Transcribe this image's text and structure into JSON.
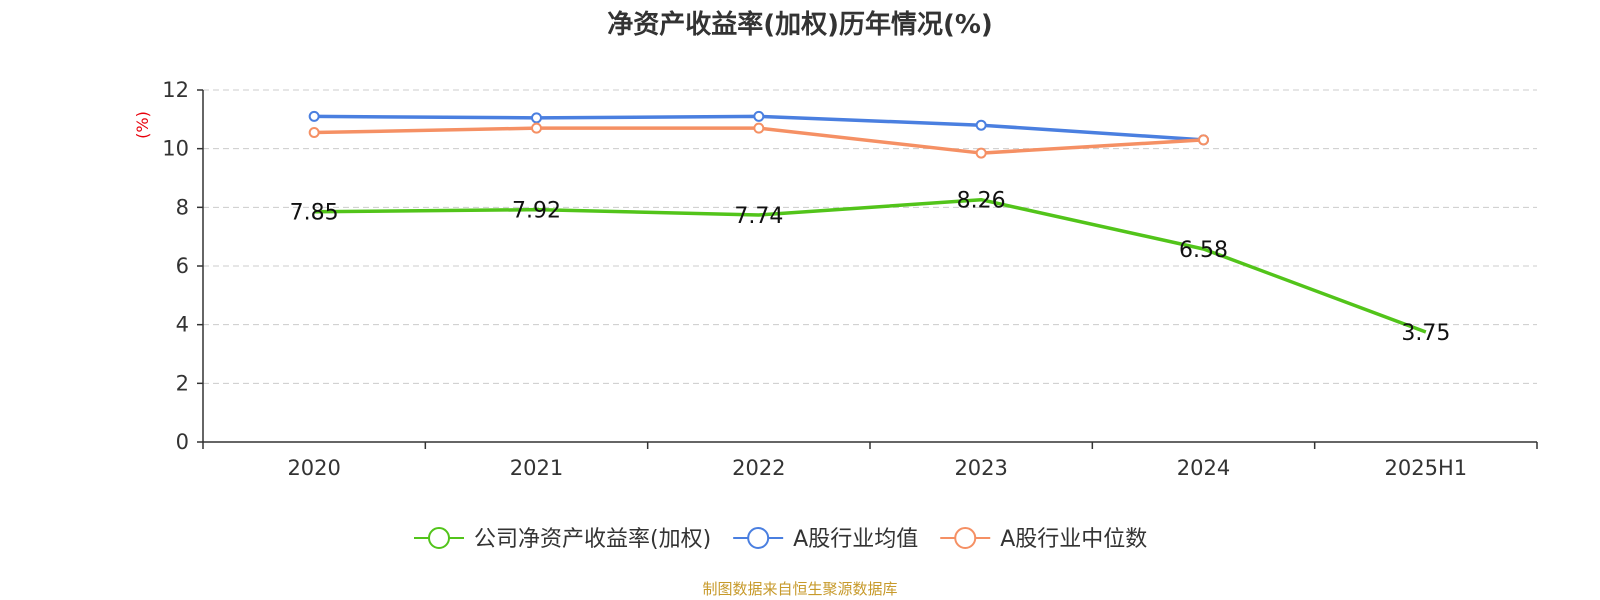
{
  "colors": {
    "company": "#52c41a",
    "avg": "#4a7fe0",
    "median": "#f59064",
    "axis": "#333333",
    "grid": "#cccccc",
    "unit": "#e8000b",
    "source": "#c79a2b"
  },
  "source_note": "制图数据来自恒生聚源数据库",
  "chart_data": {
    "type": "line",
    "title": "净资产收益率(加权)历年情况(%)",
    "ylabel": "(%)",
    "ylim": [
      0,
      12
    ],
    "yticks": [
      0,
      2,
      4,
      6,
      8,
      10,
      12
    ],
    "grid": true,
    "legend_position": "bottom",
    "categories": [
      "2020",
      "2021",
      "2022",
      "2023",
      "2024",
      "2025H1"
    ],
    "series": [
      {
        "name": "公司净资产收益率(加权)",
        "values": [
          7.85,
          7.92,
          7.74,
          8.26,
          6.58,
          3.75
        ],
        "labels": [
          "7.85",
          "7.92",
          "7.74",
          "8.26",
          "6.58",
          "3.75"
        ]
      },
      {
        "name": "A股行业均值",
        "values": [
          11.1,
          11.05,
          11.1,
          10.8,
          10.3,
          null
        ]
      },
      {
        "name": "A股行业中位数",
        "values": [
          10.55,
          10.7,
          10.7,
          9.85,
          10.3,
          null
        ]
      }
    ]
  }
}
